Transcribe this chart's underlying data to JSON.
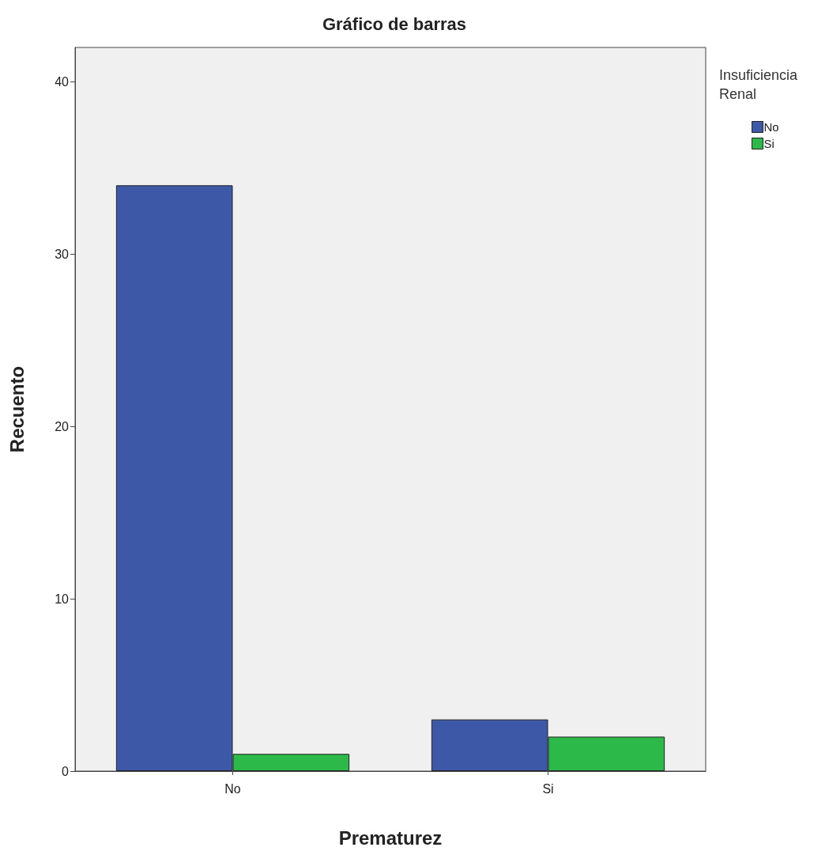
{
  "chart_data": {
    "type": "bar",
    "title": "Gráfico de barras",
    "xlabel": "Prematurez",
    "ylabel": "Recuento",
    "legend_title": "Insuficiencia Renal",
    "categories": [
      "No",
      "Si"
    ],
    "series": [
      {
        "name": "No",
        "color": "#3e58a8",
        "values": [
          34,
          3
        ]
      },
      {
        "name": "Si",
        "color": "#2db84a",
        "values": [
          1,
          2
        ]
      }
    ],
    "ylim": [
      0,
      42
    ],
    "yticks": [
      0,
      10,
      20,
      30,
      40
    ],
    "grid": false,
    "legend": "top right"
  }
}
